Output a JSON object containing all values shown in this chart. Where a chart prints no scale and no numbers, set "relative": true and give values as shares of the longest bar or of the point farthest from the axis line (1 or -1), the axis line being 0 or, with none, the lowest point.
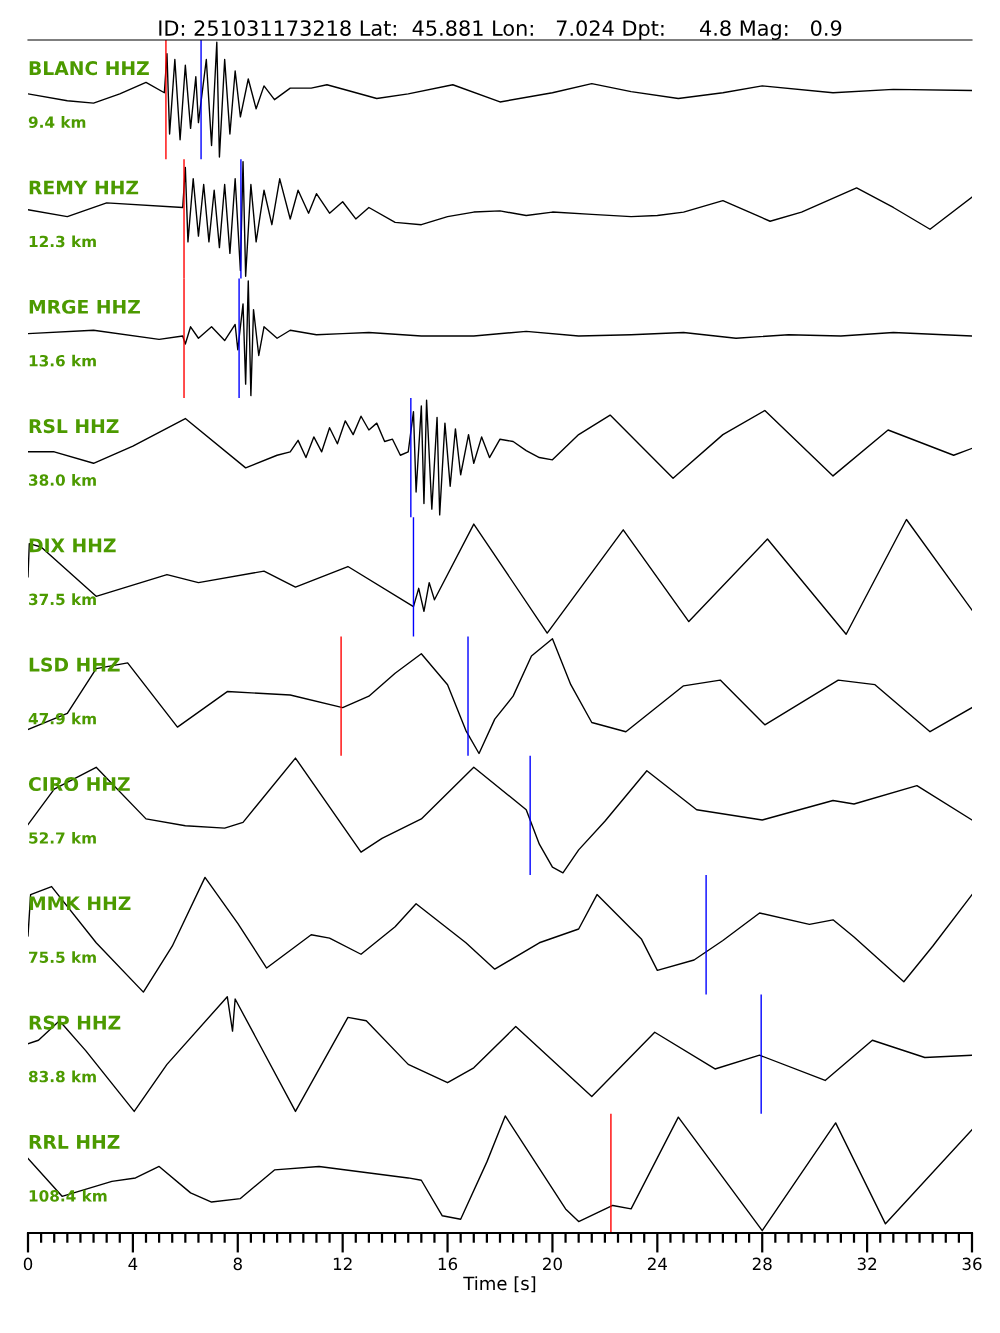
{
  "chart_data": [
    {
      "type": "line",
      "relative": true,
      "title": "ID: 251031173218 Lat:  45.881 Lon:   7.024 Dpt:     4.8 Mag:   0.9",
      "annotations": [
        "BLANC HHZ",
        "9.4 km"
      ],
      "xlim": [
        0,
        36
      ],
      "tick_labels": false,
      "ref_lines": [
        {
          "axis": "x",
          "value": 5.26,
          "color": "#ff0000"
        },
        {
          "axis": "x",
          "value": 6.6,
          "color": "#0000ff"
        }
      ],
      "series": [
        {
          "color": "#000000",
          "x": [
            0,
            1.5,
            2.5,
            3.5,
            4.5,
            5.2,
            5.3,
            5.4,
            5.6,
            5.8,
            6.0,
            6.2,
            6.4,
            6.5,
            6.8,
            7.0,
            7.2,
            7.3,
            7.5,
            7.7,
            7.9,
            8.1,
            8.4,
            8.7,
            9.0,
            9.4,
            10.0,
            10.8,
            11.4,
            12.2,
            13.3,
            14.5,
            16.2,
            18.0,
            20.0,
            21.5,
            23.0,
            24.8,
            26.5,
            28.0,
            30.7,
            33.0,
            36.0
          ],
          "values": [
            0.55,
            0.49,
            0.47,
            0.55,
            0.65,
            0.56,
            0.9,
            0.2,
            0.85,
            0.15,
            0.8,
            0.25,
            0.7,
            0.3,
            0.85,
            0.1,
            1.0,
            0.0,
            0.85,
            0.2,
            0.75,
            0.35,
            0.68,
            0.42,
            0.62,
            0.5,
            0.6,
            0.6,
            0.63,
            0.58,
            0.51,
            0.55,
            0.63,
            0.48,
            0.56,
            0.64,
            0.57,
            0.51,
            0.56,
            0.62,
            0.56,
            0.59,
            0.58
          ]
        }
      ]
    },
    {
      "type": "line",
      "relative": true,
      "annotations": [
        "REMY HHZ",
        "12.3 km"
      ],
      "xlim": [
        0,
        36
      ],
      "tick_labels": false,
      "ref_lines": [
        {
          "axis": "x",
          "value": 5.95,
          "color": "#ff0000"
        },
        {
          "axis": "x",
          "value": 8.12,
          "color": "#0000ff"
        }
      ],
      "series": [
        {
          "color": "#000000",
          "x": [
            0,
            1.5,
            3.0,
            5.9,
            6.0,
            6.1,
            6.3,
            6.5,
            6.7,
            6.9,
            7.1,
            7.3,
            7.5,
            7.7,
            7.9,
            8.1,
            8.2,
            8.3,
            8.5,
            8.7,
            9.0,
            9.3,
            9.6,
            10.0,
            10.3,
            10.7,
            11.0,
            11.5,
            12.0,
            12.5,
            13.0,
            14.0,
            15.0,
            16.0,
            17.0,
            18.0,
            19.0,
            20.0,
            21.5,
            23.0,
            24.0,
            25.0,
            26.5,
            28.3,
            29.5,
            31.6,
            33.0,
            34.4,
            36.0
          ],
          "values": [
            0.58,
            0.52,
            0.64,
            0.6,
            0.95,
            0.3,
            0.85,
            0.35,
            0.8,
            0.3,
            0.75,
            0.25,
            0.8,
            0.2,
            0.85,
            0.05,
            1.0,
            0.0,
            0.8,
            0.3,
            0.75,
            0.45,
            0.85,
            0.5,
            0.75,
            0.55,
            0.72,
            0.55,
            0.65,
            0.5,
            0.6,
            0.47,
            0.45,
            0.52,
            0.56,
            0.57,
            0.53,
            0.56,
            0.54,
            0.52,
            0.53,
            0.56,
            0.66,
            0.48,
            0.56,
            0.77,
            0.6,
            0.41,
            0.69
          ]
        }
      ]
    },
    {
      "type": "line",
      "relative": true,
      "annotations": [
        "MRGE HHZ",
        "13.6 km"
      ],
      "xlim": [
        0,
        36
      ],
      "tick_labels": false,
      "ref_lines": [
        {
          "axis": "x",
          "value": 5.95,
          "color": "#ff0000"
        },
        {
          "axis": "x",
          "value": 8.05,
          "color": "#0000ff"
        }
      ],
      "series": [
        {
          "color": "#000000",
          "x": [
            0,
            2.5,
            5.0,
            5.9,
            6.0,
            6.2,
            6.5,
            7.0,
            7.5,
            7.9,
            8.0,
            8.2,
            8.3,
            8.4,
            8.5,
            8.6,
            8.8,
            9.0,
            9.5,
            10,
            11,
            12,
            13,
            15,
            17,
            19,
            21,
            23,
            25,
            27,
            29,
            31,
            33,
            36
          ],
          "values": [
            0.54,
            0.57,
            0.49,
            0.52,
            0.45,
            0.6,
            0.5,
            0.6,
            0.48,
            0.62,
            0.4,
            0.8,
            0.1,
            1.0,
            0.0,
            0.75,
            0.35,
            0.6,
            0.5,
            0.57,
            0.53,
            0.54,
            0.55,
            0.52,
            0.52,
            0.56,
            0.52,
            0.53,
            0.55,
            0.5,
            0.53,
            0.52,
            0.55,
            0.52
          ]
        }
      ]
    },
    {
      "type": "line",
      "relative": true,
      "annotations": [
        "RSL HHZ",
        "38.0 km"
      ],
      "xlim": [
        0,
        36
      ],
      "tick_labels": false,
      "ref_lines": [
        {
          "axis": "x",
          "value": 14.6,
          "color": "#0000ff"
        }
      ],
      "series": [
        {
          "color": "#000000",
          "x": [
            0,
            1,
            2.5,
            4.0,
            6.0,
            8.3,
            9.5,
            10.0,
            10.3,
            10.6,
            10.9,
            11.2,
            11.5,
            11.8,
            12.1,
            12.4,
            12.7,
            13.0,
            13.3,
            13.6,
            13.9,
            14.2,
            14.5,
            14.7,
            14.8,
            15.0,
            15.1,
            15.2,
            15.4,
            15.6,
            15.7,
            15.9,
            16.1,
            16.3,
            16.5,
            16.8,
            17.0,
            17.3,
            17.6,
            18.0,
            18.5,
            19.0,
            19.5,
            20.0,
            21.0,
            22.2,
            24.6,
            26.5,
            28.1,
            30.7,
            32.8,
            35.3,
            36.0
          ],
          "values": [
            0.55,
            0.55,
            0.45,
            0.6,
            0.84,
            0.41,
            0.52,
            0.55,
            0.65,
            0.5,
            0.68,
            0.55,
            0.76,
            0.62,
            0.82,
            0.7,
            0.86,
            0.74,
            0.8,
            0.64,
            0.66,
            0.52,
            0.55,
            0.9,
            0.2,
            0.95,
            0.1,
            1.0,
            0.05,
            0.85,
            0.0,
            0.8,
            0.25,
            0.75,
            0.35,
            0.7,
            0.45,
            0.68,
            0.5,
            0.66,
            0.64,
            0.56,
            0.5,
            0.48,
            0.7,
            0.87,
            0.32,
            0.7,
            0.91,
            0.34,
            0.74,
            0.52,
            0.58
          ]
        }
      ]
    },
    {
      "type": "line",
      "relative": true,
      "annotations": [
        "DIX HHZ",
        "37.5 km"
      ],
      "xlim": [
        0,
        36
      ],
      "tick_labels": false,
      "ref_lines": [
        {
          "axis": "x",
          "value": 14.7,
          "color": "#0000ff"
        }
      ],
      "series": [
        {
          "color": "#000000",
          "x": [
            0,
            0.05,
            0.5,
            2.6,
            5.3,
            6.5,
            9.0,
            10.2,
            12.2,
            14.7,
            14.9,
            15.1,
            15.3,
            15.5,
            17.0,
            19.8,
            22.7,
            25.2,
            28.2,
            31.2,
            33.5,
            36.0
          ],
          "values": [
            0.5,
            0.79,
            0.76,
            0.33,
            0.52,
            0.45,
            0.55,
            0.41,
            0.59,
            0.24,
            0.4,
            0.2,
            0.45,
            0.3,
            0.96,
            0.01,
            0.91,
            0.11,
            0.83,
            0.0,
            1.0,
            0.21
          ]
        }
      ]
    },
    {
      "type": "line",
      "relative": true,
      "annotations": [
        "LSD HHZ",
        "47.9 km"
      ],
      "xlim": [
        0,
        36
      ],
      "tick_labels": false,
      "ref_lines": [
        {
          "axis": "x",
          "value": 11.94,
          "color": "#ff0000"
        },
        {
          "axis": "x",
          "value": 16.78,
          "color": "#0000ff"
        }
      ],
      "series": [
        {
          "color": "#000000",
          "x": [
            0,
            1.5,
            2.6,
            3.8,
            5.7,
            7.6,
            10.0,
            12.0,
            13.0,
            14.0,
            15.0,
            16.0,
            16.7,
            17.2,
            17.8,
            18.5,
            19.2,
            20.0,
            20.7,
            21.5,
            22.8,
            25.0,
            26.4,
            28.1,
            30.9,
            32.3,
            34.4,
            36.0
          ],
          "values": [
            0.21,
            0.35,
            0.74,
            0.79,
            0.23,
            0.54,
            0.51,
            0.4,
            0.5,
            0.7,
            0.87,
            0.6,
            0.2,
            0.0,
            0.3,
            0.5,
            0.85,
            1.0,
            0.6,
            0.27,
            0.19,
            0.59,
            0.64,
            0.25,
            0.64,
            0.6,
            0.19,
            0.4
          ]
        }
      ]
    },
    {
      "type": "line",
      "relative": true,
      "annotations": [
        "CIRO HHZ",
        "52.7 km"
      ],
      "xlim": [
        0,
        36
      ],
      "tick_labels": false,
      "ref_lines": [
        {
          "axis": "x",
          "value": 19.15,
          "color": "#0000ff"
        }
      ],
      "series": [
        {
          "color": "#000000",
          "x": [
            0,
            1,
            2.6,
            4.5,
            6.0,
            7.5,
            8.2,
            10.2,
            12.7,
            13.5,
            15.0,
            17.0,
            19.0,
            19.5,
            20.0,
            20.4,
            21.0,
            22.0,
            23.6,
            25.5,
            28.0,
            30.7,
            31.5,
            33.9,
            36.0
          ],
          "values": [
            0.42,
            0.73,
            0.92,
            0.47,
            0.41,
            0.39,
            0.44,
            1.0,
            0.18,
            0.3,
            0.47,
            0.92,
            0.55,
            0.25,
            0.05,
            0.0,
            0.2,
            0.45,
            0.89,
            0.55,
            0.46,
            0.63,
            0.6,
            0.76,
            0.46
          ]
        }
      ]
    },
    {
      "type": "line",
      "relative": true,
      "annotations": [
        "MMK HHZ",
        "75.5 km"
      ],
      "xlim": [
        0,
        36
      ],
      "tick_labels": false,
      "ref_lines": [
        {
          "axis": "x",
          "value": 25.86,
          "color": "#0000ff"
        }
      ],
      "series": [
        {
          "color": "#000000",
          "x": [
            0,
            0.1,
            0.9,
            2.6,
            4.4,
            5.5,
            6.75,
            8.0,
            9.1,
            10.8,
            11.5,
            12.7,
            14.0,
            14.8,
            16.7,
            17.8,
            19.5,
            21.0,
            21.7,
            23.4,
            24.0,
            25.4,
            26.5,
            27.9,
            29.8,
            30.7,
            31.5,
            33.4,
            34.5,
            36.0
          ],
          "values": [
            0.49,
            0.85,
            0.92,
            0.43,
            0.0,
            0.4,
            1.0,
            0.6,
            0.21,
            0.5,
            0.47,
            0.33,
            0.57,
            0.77,
            0.43,
            0.2,
            0.43,
            0.55,
            0.85,
            0.46,
            0.19,
            0.28,
            0.45,
            0.69,
            0.59,
            0.63,
            0.48,
            0.09,
            0.4,
            0.85
          ]
        }
      ]
    },
    {
      "type": "line",
      "relative": true,
      "annotations": [
        "RSP HHZ",
        "83.8 km"
      ],
      "xlim": [
        0,
        36
      ],
      "tick_labels": false,
      "ref_lines": [
        {
          "axis": "x",
          "value": 27.96,
          "color": "#0000ff"
        }
      ],
      "series": [
        {
          "color": "#000000",
          "x": [
            0,
            0.4,
            1.2,
            2.2,
            4.05,
            5.3,
            7.6,
            7.8,
            7.9,
            10.2,
            12.2,
            12.9,
            14.5,
            16.0,
            17.0,
            18.6,
            21.5,
            23.9,
            26.2,
            27.9,
            30.4,
            32.2,
            34.2,
            36.0
          ],
          "values": [
            0.59,
            0.62,
            0.79,
            0.53,
            0.0,
            0.41,
            1.0,
            0.7,
            0.98,
            0.0,
            0.82,
            0.79,
            0.41,
            0.25,
            0.38,
            0.74,
            0.13,
            0.69,
            0.37,
            0.49,
            0.27,
            0.62,
            0.47,
            0.49
          ]
        }
      ]
    },
    {
      "type": "line",
      "relative": true,
      "annotations": [
        "RRL HHZ",
        "108.4 km"
      ],
      "xlabel": "Time [s]",
      "xlim": [
        0,
        36
      ],
      "tick_labels": "x",
      "xticks": [
        0,
        {
          "value": 0.5,
          "label": null
        },
        {
          "value": 1,
          "label": null
        },
        {
          "value": 1.5,
          "label": null
        },
        {
          "value": 2,
          "label": null
        },
        {
          "value": 2.5,
          "label": null
        },
        {
          "value": 3,
          "label": null
        },
        {
          "value": 3.5,
          "label": null
        },
        4,
        {
          "value": 4.5,
          "label": null
        },
        {
          "value": 5,
          "label": null
        },
        {
          "value": 5.5,
          "label": null
        },
        {
          "value": 6,
          "label": null
        },
        {
          "value": 6.5,
          "label": null
        },
        {
          "value": 7,
          "label": null
        },
        {
          "value": 7.5,
          "label": null
        },
        8,
        {
          "value": 8.5,
          "label": null
        },
        {
          "value": 9,
          "label": null
        },
        {
          "value": 9.5,
          "label": null
        },
        {
          "value": 10,
          "label": null
        },
        {
          "value": 10.5,
          "label": null
        },
        {
          "value": 11,
          "label": null
        },
        {
          "value": 11.5,
          "label": null
        },
        12,
        {
          "value": 12.5,
          "label": null
        },
        {
          "value": 13,
          "label": null
        },
        {
          "value": 13.5,
          "label": null
        },
        {
          "value": 14,
          "label": null
        },
        {
          "value": 14.5,
          "label": null
        },
        {
          "value": 15,
          "label": null
        },
        {
          "value": 15.5,
          "label": null
        },
        16,
        {
          "value": 16.5,
          "label": null
        },
        {
          "value": 17,
          "label": null
        },
        {
          "value": 17.5,
          "label": null
        },
        {
          "value": 18,
          "label": null
        },
        {
          "value": 18.5,
          "label": null
        },
        {
          "value": 19,
          "label": null
        },
        {
          "value": 19.5,
          "label": null
        },
        20,
        {
          "value": 20.5,
          "label": null
        },
        {
          "value": 21,
          "label": null
        },
        {
          "value": 21.5,
          "label": null
        },
        {
          "value": 22,
          "label": null
        },
        {
          "value": 22.5,
          "label": null
        },
        {
          "value": 23,
          "label": null
        },
        {
          "value": 23.5,
          "label": null
        },
        24,
        {
          "value": 24.5,
          "label": null
        },
        {
          "value": 25,
          "label": null
        },
        {
          "value": 25.5,
          "label": null
        },
        {
          "value": 26,
          "label": null
        },
        {
          "value": 26.5,
          "label": null
        },
        {
          "value": 27,
          "label": null
        },
        {
          "value": 27.5,
          "label": null
        },
        28,
        {
          "value": 28.5,
          "label": null
        },
        {
          "value": 29,
          "label": null
        },
        {
          "value": 29.5,
          "label": null
        },
        {
          "value": 30,
          "label": null
        },
        {
          "value": 30.5,
          "label": null
        },
        {
          "value": 31,
          "label": null
        },
        {
          "value": 31.5,
          "label": null
        },
        32,
        {
          "value": 32.5,
          "label": null
        },
        {
          "value": 33,
          "label": null
        },
        {
          "value": 33.5,
          "label": null
        },
        {
          "value": 34,
          "label": null
        },
        {
          "value": 34.5,
          "label": null
        },
        {
          "value": 35,
          "label": null
        },
        {
          "value": 35.5,
          "label": null
        },
        36
      ],
      "ref_lines": [
        {
          "axis": "x",
          "value": 22.23,
          "color": "#ff0000"
        }
      ],
      "series": [
        {
          "color": "#000000",
          "x": [
            0,
            1.3,
            3.2,
            4.1,
            5.0,
            6.2,
            7.0,
            8.1,
            9.4,
            11.1,
            14.5,
            15.0,
            15.8,
            16.5,
            17.5,
            18.2,
            20.5,
            21.0,
            22.3,
            23.0,
            24.8,
            28.0,
            30.8,
            32.7,
            36.0
          ],
          "values": [
            0.63,
            0.3,
            0.43,
            0.46,
            0.56,
            0.33,
            0.25,
            0.28,
            0.53,
            0.56,
            0.46,
            0.44,
            0.13,
            0.1,
            0.6,
            1.0,
            0.19,
            0.08,
            0.22,
            0.19,
            0.99,
            0.0,
            0.94,
            0.06,
            0.88
          ]
        }
      ]
    }
  ]
}
